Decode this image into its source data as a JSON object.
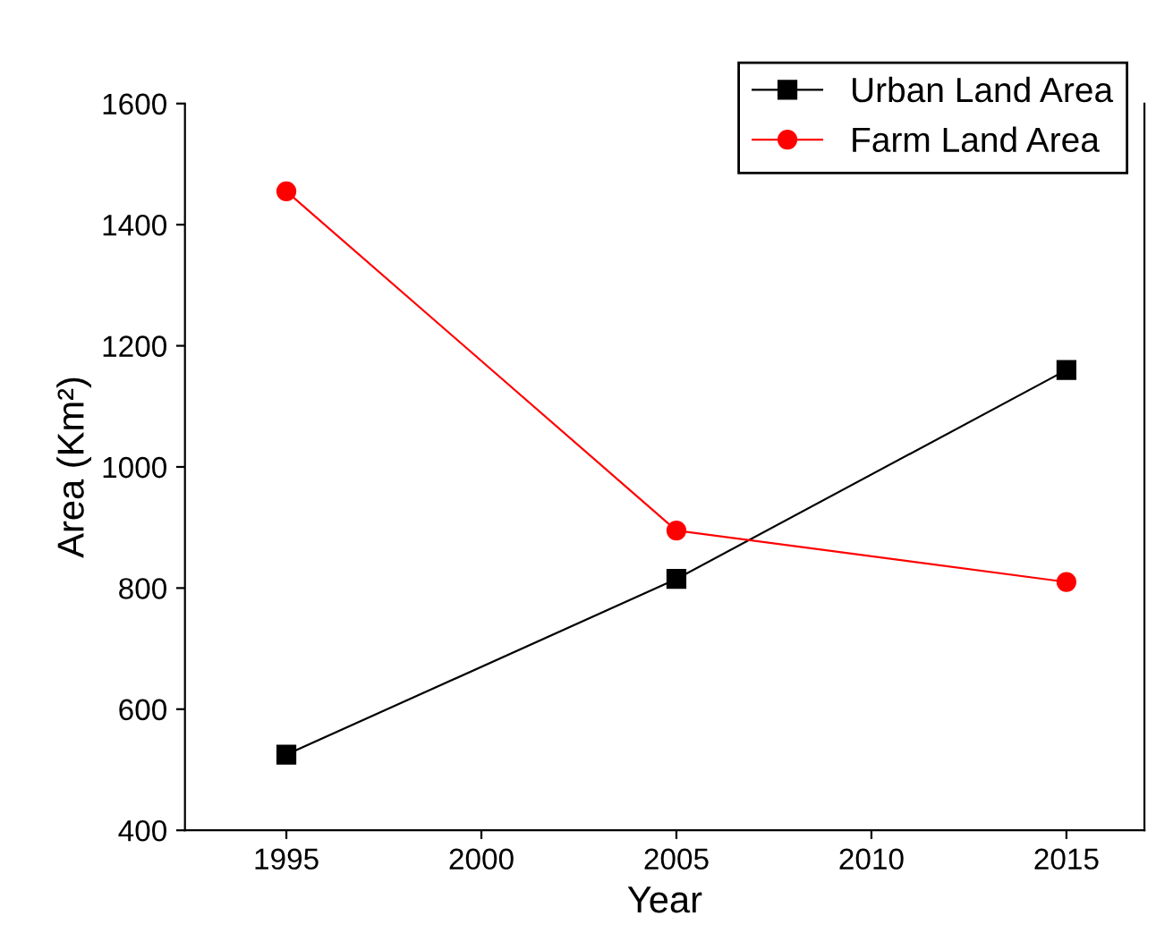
{
  "chart_data": {
    "type": "line",
    "xlabel": "Year",
    "ylabel": "Area (Km²)",
    "x": [
      1995,
      2005,
      2015
    ],
    "series": [
      {
        "name": "Urban Land Area",
        "color": "#000000",
        "marker": "square",
        "values": [
          525,
          815,
          1160
        ]
      },
      {
        "name": "Farm Land Area",
        "color": "#ff0000",
        "marker": "circle",
        "values": [
          1455,
          895,
          810
        ]
      }
    ],
    "xlim": [
      1992.4,
      2017
    ],
    "xticks": [
      1995,
      2000,
      2005,
      2010,
      2015
    ],
    "ylim": [
      400,
      1600
    ],
    "yticks": [
      400,
      600,
      800,
      1000,
      1200,
      1400,
      1600
    ],
    "grid": false,
    "legend": "top right",
    "line_style": "solid"
  }
}
